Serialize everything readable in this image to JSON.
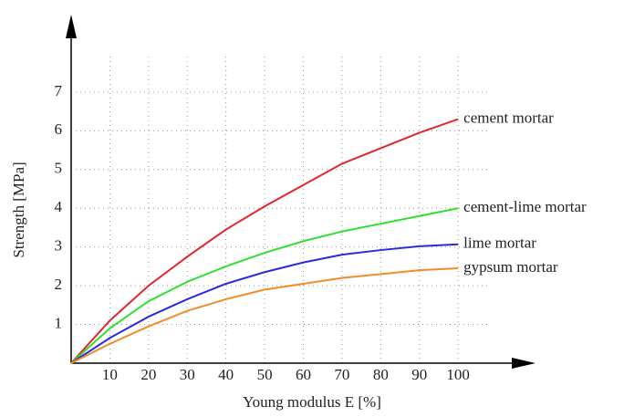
{
  "chart_data": {
    "type": "line",
    "x_label": "Young modulus E [%]",
    "y_label": "Strength [MPa]",
    "x": [
      0,
      10,
      20,
      30,
      40,
      50,
      60,
      70,
      80,
      90,
      100
    ],
    "series": [
      {
        "name": "cement mortar",
        "color": "#e3262b",
        "values": [
          0,
          1.1,
          2.0,
          2.75,
          3.45,
          4.05,
          4.6,
          5.15,
          5.55,
          5.95,
          6.3
        ]
      },
      {
        "name": "cement-lime mortar",
        "color": "#2ee02e",
        "values": [
          0,
          0.9,
          1.6,
          2.1,
          2.5,
          2.85,
          3.15,
          3.4,
          3.6,
          3.8,
          4.0
        ]
      },
      {
        "name": "lime mortar",
        "color": "#2a2ae0",
        "values": [
          0,
          0.65,
          1.2,
          1.65,
          2.05,
          2.35,
          2.6,
          2.8,
          2.92,
          3.02,
          3.07
        ]
      },
      {
        "name": "gypsum mortar",
        "color": "#f28c28",
        "values": [
          0,
          0.5,
          0.95,
          1.35,
          1.65,
          1.9,
          2.05,
          2.2,
          2.3,
          2.4,
          2.45
        ]
      }
    ],
    "xlim": [
      0,
      120
    ],
    "ylim": [
      0,
      9
    ],
    "xticks": [
      10,
      20,
      30,
      40,
      50,
      60,
      70,
      80,
      90,
      100
    ],
    "yticks": [
      1,
      2,
      3,
      4,
      5,
      6,
      7
    ],
    "grid": true
  }
}
